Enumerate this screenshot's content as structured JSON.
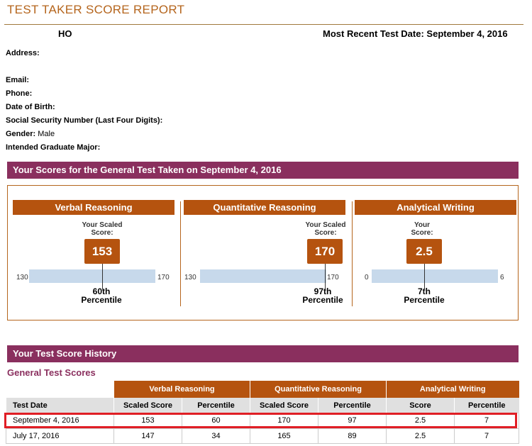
{
  "report": {
    "title": "TEST TAKER SCORE REPORT"
  },
  "candidate": {
    "name": "HO",
    "recent_label": "Most Recent Test Date:",
    "recent_date": "September 4, 2016"
  },
  "info": {
    "address_label": "Address:",
    "email_label": "Email:",
    "phone_label": "Phone:",
    "dob_label": "Date of Birth:",
    "ssn_label": "Social Security Number (Last Four Digits):",
    "gender_label": "Gender:",
    "gender_value": "Male",
    "major_label": "Intended Graduate Major:"
  },
  "scores_section": {
    "title": "Your Scores for the General Test Taken on September 4, 2016",
    "panels": [
      {
        "name": "Verbal Reasoning",
        "score_label_1": "Your Scaled",
        "score_label_2": "Score:",
        "score": "153",
        "min": "130",
        "max": "170",
        "percentile_value": "60th",
        "percentile_label": "Percentile",
        "score_num": 153,
        "min_num": 130,
        "max_num": 170
      },
      {
        "name": "Quantitative Reasoning",
        "score_label_1": "Your Scaled",
        "score_label_2": "Score:",
        "score": "170",
        "min": "130",
        "max": "170",
        "percentile_value": "97th",
        "percentile_label": "Percentile",
        "score_num": 170,
        "min_num": 130,
        "max_num": 170
      },
      {
        "name": "Analytical Writing",
        "score_label_1": "Your",
        "score_label_2": "Score:",
        "score": "2.5",
        "min": "0",
        "max": "6",
        "percentile_value": "7th",
        "percentile_label": "Percentile",
        "score_num": 2.5,
        "min_num": 0,
        "max_num": 6
      }
    ]
  },
  "history": {
    "title": "Your Test Score History",
    "subtitle": "General Test Scores",
    "groups": [
      "Verbal Reasoning",
      "Quantitative Reasoning",
      "Analytical Writing"
    ],
    "columns": [
      "Test Date",
      "Scaled Score",
      "Percentile",
      "Scaled Score",
      "Percentile",
      "Score",
      "Percentile"
    ],
    "rows": [
      [
        "September 4, 2016",
        "153",
        "60",
        "170",
        "97",
        "2.5",
        "7"
      ],
      [
        "July 17, 2016",
        "147",
        "34",
        "165",
        "89",
        "2.5",
        "7"
      ]
    ]
  },
  "colors": {
    "brand_orange": "#b5530f",
    "band_purple": "#8a2f5e",
    "highlight_red": "#e01e25",
    "bar_blue": "#c7d9eb"
  }
}
